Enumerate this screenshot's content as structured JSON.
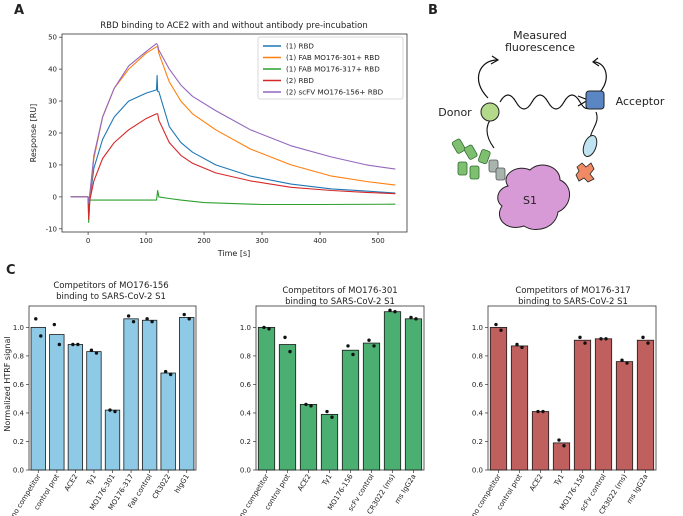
{
  "panels": {
    "a": "A",
    "b": "B",
    "c": "C"
  },
  "diagram": {
    "title_line1": "Measured",
    "title_line2": "fluorescence",
    "donor_label": "Donor",
    "acceptor_label": "Acceptor",
    "s1_label": "S1",
    "colors": {
      "donor": "#b3d98a",
      "acceptor": "#5b86c4",
      "s1": "#d79ad6",
      "antibody": "#7fbf70",
      "antibody_light": "#a7b5ad",
      "ace2": "#bfe3f0",
      "ace2_head": "#f08a64"
    }
  },
  "chart_data": [
    {
      "type": "line",
      "title": "RBD  binding to ACE2 with and without antibody pre-incubation",
      "xlabel": "Time [s]",
      "ylabel": "Response [RU]",
      "xlim": [
        -45,
        550
      ],
      "ylim": [
        -11,
        51
      ],
      "xticks": [
        0,
        100,
        200,
        300,
        400,
        500
      ],
      "yticks": [
        -10,
        0,
        10,
        20,
        30,
        40,
        50
      ],
      "legend_position": "top-right",
      "series": [
        {
          "name": "(1) RBD",
          "color": "#1f77b4",
          "points": [
            [
              -30,
              0
            ],
            [
              0,
              0
            ],
            [
              1,
              -3
            ],
            [
              3,
              -1
            ],
            [
              10,
              9
            ],
            [
              25,
              18
            ],
            [
              45,
              25
            ],
            [
              70,
              30
            ],
            [
              100,
              32.5
            ],
            [
              118,
              33.5
            ],
            [
              119,
              38
            ],
            [
              120,
              33
            ],
            [
              122,
              33
            ],
            [
              140,
              22
            ],
            [
              160,
              17
            ],
            [
              180,
              14
            ],
            [
              220,
              10
            ],
            [
              280,
              6.5
            ],
            [
              350,
              4
            ],
            [
              420,
              2.5
            ],
            [
              480,
              1.8
            ],
            [
              530,
              1.2
            ]
          ]
        },
        {
          "name": "(1) FAB MO176-301+ RBD",
          "color": "#ff7f0e",
          "points": [
            [
              -30,
              0
            ],
            [
              0,
              0
            ],
            [
              1,
              -3
            ],
            [
              3,
              0
            ],
            [
              10,
              12
            ],
            [
              25,
              25
            ],
            [
              45,
              34
            ],
            [
              70,
              40
            ],
            [
              100,
              45
            ],
            [
              118,
              47
            ],
            [
              120,
              47
            ],
            [
              122,
              45
            ],
            [
              140,
              36
            ],
            [
              160,
              30
            ],
            [
              180,
              26
            ],
            [
              220,
              21
            ],
            [
              280,
              15
            ],
            [
              350,
              10
            ],
            [
              420,
              6.5
            ],
            [
              480,
              4.8
            ],
            [
              530,
              3.7
            ]
          ]
        },
        {
          "name": "(1) FAB MO176-317+ RBD",
          "color": "#2ca02c",
          "points": [
            [
              -30,
              0
            ],
            [
              0,
              0
            ],
            [
              1,
              -8
            ],
            [
              3,
              -1
            ],
            [
              20,
              -1
            ],
            [
              100,
              -1
            ],
            [
              118,
              -1
            ],
            [
              120,
              2
            ],
            [
              122,
              0
            ],
            [
              140,
              -0.5
            ],
            [
              160,
              -1
            ],
            [
              200,
              -1.8
            ],
            [
              300,
              -2.4
            ],
            [
              400,
              -2.4
            ],
            [
              530,
              -2.3
            ]
          ]
        },
        {
          "name": "(2) RBD",
          "color": "#d62728",
          "points": [
            [
              -30,
              0
            ],
            [
              0,
              0
            ],
            [
              1,
              -7
            ],
            [
              3,
              -1
            ],
            [
              10,
              5
            ],
            [
              25,
              12
            ],
            [
              45,
              17
            ],
            [
              70,
              21
            ],
            [
              100,
              24.5
            ],
            [
              118,
              26
            ],
            [
              120,
              26
            ],
            [
              122,
              24
            ],
            [
              140,
              17
            ],
            [
              160,
              13
            ],
            [
              180,
              10.5
            ],
            [
              220,
              7.5
            ],
            [
              280,
              5
            ],
            [
              350,
              3
            ],
            [
              420,
              2
            ],
            [
              480,
              1.4
            ],
            [
              530,
              1
            ]
          ]
        },
        {
          "name": "(2) scFV MO176-156+ RBD",
          "color": "#9467bd",
          "points": [
            [
              -30,
              0
            ],
            [
              0,
              0
            ],
            [
              1,
              -2
            ],
            [
              3,
              1
            ],
            [
              10,
              13
            ],
            [
              25,
              25
            ],
            [
              45,
              34
            ],
            [
              70,
              41
            ],
            [
              100,
              45.5
            ],
            [
              118,
              48
            ],
            [
              120,
              47.5
            ],
            [
              122,
              46
            ],
            [
              140,
              40
            ],
            [
              160,
              35
            ],
            [
              180,
              31.5
            ],
            [
              220,
              27
            ],
            [
              280,
              21
            ],
            [
              350,
              16
            ],
            [
              420,
              12.5
            ],
            [
              480,
              10
            ],
            [
              530,
              8.7
            ]
          ]
        }
      ]
    },
    {
      "type": "bar",
      "title": "Competitors of MO176-156",
      "title_line2": "binding to SARS-CoV-2  S1",
      "ylabel": "Normalized HTRF signal",
      "ylim": [
        0,
        1.15
      ],
      "yticks": [
        "0.0",
        "0.2",
        "0.4",
        "0.6",
        "0.8",
        "1.0"
      ],
      "bar_color": "#8ecae6",
      "categories": [
        "no competitor",
        "control prot",
        "ACE2",
        "Ty1",
        "MO176-301",
        "MO176-317",
        "Fab control",
        "CR3022",
        "hIgG1"
      ],
      "values": [
        1.0,
        0.95,
        0.88,
        0.83,
        0.42,
        1.06,
        1.05,
        0.68,
        1.07
      ],
      "points": [
        [
          1.06,
          0.94
        ],
        [
          1.02,
          0.88
        ],
        [
          0.88,
          0.88
        ],
        [
          0.84,
          0.82
        ],
        [
          0.42,
          0.41
        ],
        [
          1.08,
          1.04
        ],
        [
          1.06,
          1.04
        ],
        [
          0.69,
          0.67
        ],
        [
          1.09,
          1.06
        ]
      ]
    },
    {
      "type": "bar",
      "title": "Competitors of MO176-301",
      "title_line2": "binding to SARS-CoV-2  S1",
      "ylim": [
        0,
        1.15
      ],
      "yticks": [
        "0.0",
        "0.2",
        "0.4",
        "0.6",
        "0.8",
        "1.0"
      ],
      "bar_color": "#4caf72",
      "categories": [
        "no competitor",
        "control prot",
        "ACE2",
        "Ty1",
        "MO176-156",
        "scFv control",
        "CR3022 (ms)",
        "ms IgG2a"
      ],
      "values": [
        1.0,
        0.88,
        0.46,
        0.39,
        0.84,
        0.89,
        1.11,
        1.06
      ],
      "points": [
        [
          1.0,
          0.99
        ],
        [
          0.93,
          0.83
        ],
        [
          0.46,
          0.45
        ],
        [
          0.41,
          0.37
        ],
        [
          0.87,
          0.81
        ],
        [
          0.91,
          0.87
        ],
        [
          1.12,
          1.11
        ],
        [
          1.07,
          1.06
        ]
      ]
    },
    {
      "type": "bar",
      "title": "Competitors of MO176-317",
      "title_line2": "binding to SARS-CoV-2  S1",
      "ylim": [
        0,
        1.15
      ],
      "yticks": [
        "0.0",
        "0.2",
        "0.4",
        "0.6",
        "0.8",
        "1.0"
      ],
      "bar_color": "#c0605e",
      "categories": [
        "no competitor",
        "control prot",
        "ACE2",
        "Ty1",
        "MO176-156",
        "scFv control",
        "CR3022 (ms)",
        "ms IgG2a"
      ],
      "values": [
        1.0,
        0.87,
        0.41,
        0.19,
        0.91,
        0.92,
        0.76,
        0.91
      ],
      "points": [
        [
          1.02,
          0.98
        ],
        [
          0.88,
          0.86
        ],
        [
          0.41,
          0.41
        ],
        [
          0.21,
          0.17
        ],
        [
          0.93,
          0.89
        ],
        [
          0.92,
          0.92
        ],
        [
          0.77,
          0.75
        ],
        [
          0.93,
          0.89
        ]
      ]
    }
  ]
}
